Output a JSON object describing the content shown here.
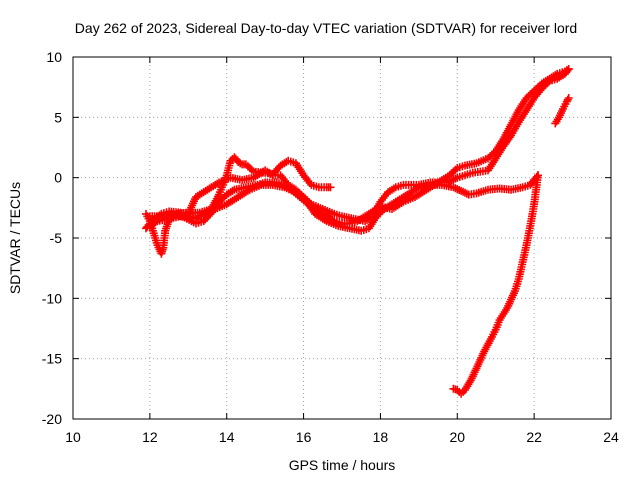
{
  "chart_data": {
    "type": "scatter",
    "title": "Day 262 of 2023, Sidereal Day-to-day VTEC variation (SDTVAR) for receiver lord",
    "xlabel": "GPS time / hours",
    "ylabel": "SDTVAR / TECUs",
    "xlim": [
      10,
      24
    ],
    "ylim": [
      -20,
      10
    ],
    "xticks": [
      10,
      12,
      14,
      16,
      18,
      20,
      22,
      24
    ],
    "yticks": [
      -20,
      -15,
      -10,
      -5,
      0,
      5,
      10
    ],
    "xtick_labels": [
      "10",
      "12",
      "14",
      "16",
      "18",
      "20",
      "22",
      "24"
    ],
    "ytick_labels": [
      "-20",
      "-15",
      "-10",
      "-5",
      "0",
      "5",
      "10"
    ],
    "grid": true,
    "marker": "plus",
    "color": "#ff0000",
    "series": [
      {
        "name": "track-1",
        "points": [
          [
            11.9,
            -3.0
          ],
          [
            12.0,
            -3.6
          ],
          [
            12.1,
            -4.6
          ],
          [
            12.2,
            -5.6
          ],
          [
            12.3,
            -6.3
          ],
          [
            12.35,
            -5.8
          ],
          [
            12.4,
            -4.4
          ],
          [
            12.5,
            -3.5
          ],
          [
            12.7,
            -3.0
          ],
          [
            13.0,
            -2.9
          ],
          [
            13.3,
            -2.9
          ],
          [
            13.6,
            -2.6
          ],
          [
            13.8,
            -1.4
          ],
          [
            13.9,
            -0.6
          ],
          [
            14.0,
            0.2
          ],
          [
            14.1,
            1.4
          ],
          [
            14.2,
            1.7
          ],
          [
            14.3,
            1.3
          ],
          [
            14.4,
            1.1
          ],
          [
            14.5,
            1.1
          ],
          [
            14.7,
            0.5
          ],
          [
            15.0,
            0.4
          ],
          [
            15.2,
            0.3
          ],
          [
            15.4,
            1.0
          ],
          [
            15.6,
            1.4
          ],
          [
            15.8,
            1.2
          ],
          [
            16.0,
            0.2
          ],
          [
            16.2,
            -0.6
          ],
          [
            16.4,
            -0.8
          ],
          [
            16.6,
            -0.8
          ],
          [
            16.7,
            -0.8
          ]
        ]
      },
      {
        "name": "track-2",
        "points": [
          [
            11.9,
            -4.2
          ],
          [
            12.0,
            -3.8
          ],
          [
            12.1,
            -3.5
          ],
          [
            12.3,
            -3.0
          ],
          [
            12.5,
            -2.8
          ],
          [
            12.8,
            -2.9
          ],
          [
            13.0,
            -3.0
          ],
          [
            13.2,
            -1.6
          ],
          [
            13.5,
            -1.0
          ],
          [
            13.8,
            -0.4
          ],
          [
            14.1,
            0.0
          ],
          [
            14.4,
            -0.2
          ],
          [
            14.7,
            0.0
          ],
          [
            15.0,
            0.6
          ],
          [
            15.2,
            0.2
          ],
          [
            15.4,
            0.2
          ],
          [
            15.6,
            -0.6
          ],
          [
            15.8,
            -1.0
          ],
          [
            16.0,
            -1.6
          ],
          [
            16.2,
            -2.2
          ],
          [
            16.5,
            -2.6
          ],
          [
            16.8,
            -3.0
          ],
          [
            17.0,
            -3.2
          ],
          [
            17.3,
            -3.4
          ],
          [
            17.6,
            -3.6
          ],
          [
            17.8,
            -3.2
          ],
          [
            18.0,
            -2.0
          ],
          [
            18.2,
            -1.2
          ],
          [
            18.4,
            -0.8
          ],
          [
            18.6,
            -0.6
          ],
          [
            19.0,
            -0.6
          ],
          [
            19.3,
            -0.4
          ],
          [
            19.6,
            -0.4
          ],
          [
            19.8,
            -0.3
          ],
          [
            20.0,
            0.0
          ],
          [
            20.2,
            0.2
          ],
          [
            20.4,
            0.4
          ],
          [
            20.6,
            0.5
          ],
          [
            20.8,
            0.6
          ],
          [
            21.0,
            1.6
          ],
          [
            21.2,
            2.6
          ],
          [
            21.4,
            3.5
          ],
          [
            21.6,
            4.6
          ],
          [
            21.8,
            5.6
          ],
          [
            22.0,
            6.6
          ],
          [
            22.2,
            7.4
          ],
          [
            22.4,
            8.0
          ],
          [
            22.6,
            8.2
          ],
          [
            22.8,
            8.6
          ],
          [
            22.9,
            9.0
          ]
        ]
      },
      {
        "name": "track-3",
        "points": [
          [
            12.0,
            -4.0
          ],
          [
            12.2,
            -3.6
          ],
          [
            12.5,
            -3.4
          ],
          [
            12.8,
            -3.2
          ],
          [
            13.0,
            -3.2
          ],
          [
            13.2,
            -3.4
          ],
          [
            13.4,
            -3.0
          ],
          [
            13.6,
            -2.6
          ],
          [
            13.8,
            -2.0
          ],
          [
            14.0,
            -1.4
          ],
          [
            14.2,
            -1.0
          ],
          [
            14.5,
            -0.8
          ],
          [
            14.8,
            -0.6
          ],
          [
            15.0,
            -0.4
          ],
          [
            15.3,
            -0.4
          ],
          [
            15.6,
            -0.8
          ],
          [
            15.9,
            -1.6
          ],
          [
            16.2,
            -2.4
          ],
          [
            16.5,
            -3.0
          ],
          [
            16.8,
            -3.6
          ],
          [
            17.0,
            -3.8
          ],
          [
            17.2,
            -3.8
          ],
          [
            17.4,
            -3.6
          ],
          [
            17.6,
            -3.2
          ],
          [
            17.8,
            -2.8
          ],
          [
            18.0,
            -2.4
          ],
          [
            18.3,
            -2.6
          ],
          [
            18.6,
            -2.0
          ],
          [
            18.9,
            -1.6
          ],
          [
            19.2,
            -1.0
          ],
          [
            19.5,
            -0.4
          ],
          [
            19.8,
            0.2
          ],
          [
            20.0,
            0.8
          ],
          [
            20.2,
            1.0
          ],
          [
            20.5,
            1.2
          ],
          [
            20.8,
            1.6
          ],
          [
            21.0,
            2.2
          ],
          [
            21.2,
            3.2
          ],
          [
            21.4,
            4.4
          ],
          [
            21.6,
            5.6
          ],
          [
            21.8,
            6.6
          ],
          [
            22.0,
            7.2
          ],
          [
            22.2,
            7.8
          ],
          [
            22.4,
            8.2
          ],
          [
            22.6,
            8.6
          ],
          [
            22.8,
            8.8
          ],
          [
            22.9,
            9.0
          ]
        ]
      },
      {
        "name": "track-4",
        "points": [
          [
            12.0,
            -3.2
          ],
          [
            12.3,
            -3.2
          ],
          [
            12.6,
            -3.0
          ],
          [
            12.9,
            -3.3
          ],
          [
            13.2,
            -3.8
          ],
          [
            13.4,
            -3.6
          ],
          [
            13.7,
            -2.6
          ],
          [
            14.0,
            -2.2
          ],
          [
            14.3,
            -1.6
          ],
          [
            14.6,
            -1.0
          ],
          [
            14.9,
            -0.6
          ],
          [
            15.2,
            -0.6
          ],
          [
            15.5,
            -0.8
          ],
          [
            15.8,
            -1.2
          ],
          [
            16.0,
            -1.6
          ],
          [
            16.3,
            -3.0
          ],
          [
            16.6,
            -3.6
          ],
          [
            16.9,
            -4.0
          ],
          [
            17.2,
            -4.2
          ],
          [
            17.5,
            -4.4
          ],
          [
            17.7,
            -4.2
          ],
          [
            17.9,
            -3.2
          ],
          [
            18.1,
            -2.6
          ],
          [
            18.4,
            -2.0
          ],
          [
            18.7,
            -1.4
          ],
          [
            19.0,
            -0.8
          ],
          [
            19.3,
            -0.6
          ],
          [
            19.6,
            -0.6
          ],
          [
            19.9,
            -0.8
          ],
          [
            20.1,
            -1.1
          ],
          [
            20.3,
            -1.4
          ],
          [
            20.5,
            -1.3
          ],
          [
            20.8,
            -1.0
          ],
          [
            21.1,
            -0.9
          ],
          [
            21.4,
            -1.0
          ],
          [
            21.7,
            -0.8
          ],
          [
            21.9,
            -0.6
          ],
          [
            22.0,
            -0.2
          ],
          [
            22.1,
            0.2
          ]
        ]
      },
      {
        "name": "track-5",
        "points": [
          [
            19.9,
            -17.5
          ],
          [
            20.0,
            -17.6
          ],
          [
            20.1,
            -17.9
          ],
          [
            20.2,
            -17.6
          ],
          [
            20.35,
            -16.8
          ],
          [
            20.5,
            -15.8
          ],
          [
            20.7,
            -14.4
          ],
          [
            20.9,
            -13.2
          ],
          [
            21.0,
            -12.6
          ],
          [
            21.1,
            -11.8
          ],
          [
            21.3,
            -10.8
          ],
          [
            21.5,
            -9.4
          ],
          [
            21.6,
            -8.4
          ],
          [
            21.7,
            -7.0
          ],
          [
            21.8,
            -5.6
          ],
          [
            21.9,
            -4.0
          ],
          [
            22.0,
            -2.2
          ],
          [
            22.05,
            -1.0
          ],
          [
            22.1,
            0.2
          ]
        ]
      },
      {
        "name": "track-6",
        "points": [
          [
            22.55,
            4.5
          ],
          [
            22.65,
            5.0
          ],
          [
            22.75,
            5.7
          ],
          [
            22.85,
            6.3
          ],
          [
            22.9,
            6.6
          ]
        ]
      }
    ]
  }
}
